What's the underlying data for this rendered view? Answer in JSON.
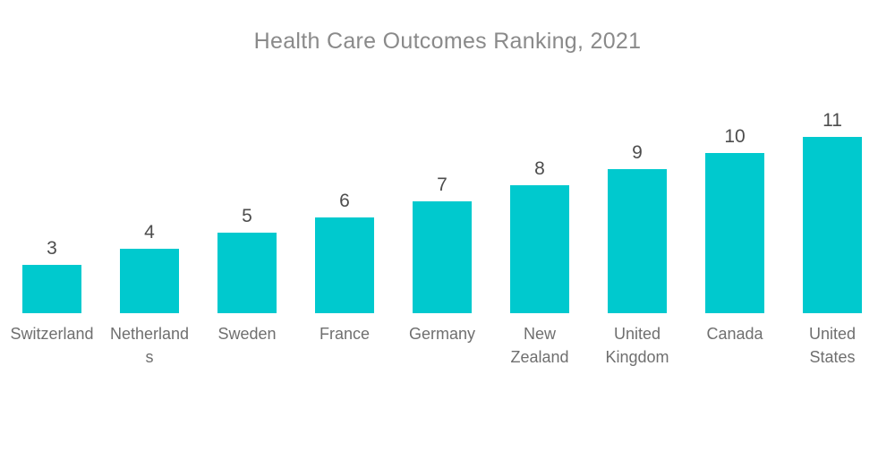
{
  "title": "Health Care Outcomes Ranking, 2021",
  "chart_data": {
    "type": "bar",
    "title": "Health Care Outcomes Ranking, 2021",
    "categories": [
      "Switzerland",
      "Netherlands",
      "Sweden",
      "France",
      "Germany",
      "New Zealand",
      "United Kingdom",
      "Canada",
      "United States"
    ],
    "values": [
      3,
      4,
      5,
      6,
      7,
      8,
      9,
      10,
      11
    ],
    "xlabel": "",
    "ylabel": "",
    "ylim": [
      0,
      11
    ],
    "grid": false,
    "legend": false,
    "axes_shown": false,
    "value_labels_shown": true,
    "bar_color": "#00C9CE"
  },
  "colors": {
    "background": "#FFFFFF",
    "bar": "#00C9CE",
    "title_text": "#8A8A8A",
    "value_text": "#4D4D4D",
    "category_text": "#6F6F6F"
  }
}
